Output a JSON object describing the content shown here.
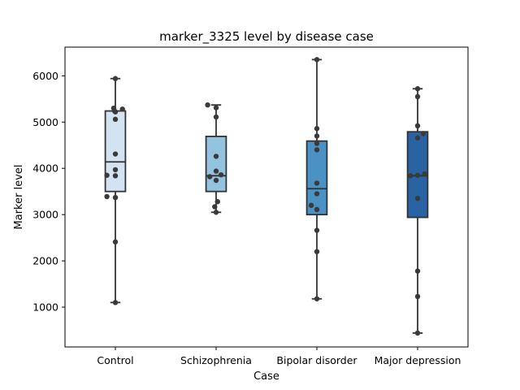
{
  "chart_data": {
    "type": "box",
    "title": "marker_3325 level by disease case",
    "xlabel": "Case",
    "ylabel": "Marker level",
    "ylim": [
      140,
      6620
    ],
    "yticks": [
      1000,
      2000,
      3000,
      4000,
      5000,
      6000
    ],
    "ytick_labels": [
      "1000",
      "2000",
      "3000",
      "4000",
      "5000",
      "6000"
    ],
    "grid": false,
    "legend": "none",
    "categories": [
      "Control",
      "Schizophrenia",
      "Bipolar disorder",
      "Major depression"
    ],
    "colors": [
      "#d3e3f2",
      "#93c3de",
      "#4a91c4",
      "#2a63a3"
    ],
    "point_color": "#3a3a3a",
    "line_color": "#333333",
    "boxes": [
      {
        "category": "Control",
        "whisker_low": 1100,
        "q1": 3500,
        "median": 4140,
        "q3": 5240,
        "whisker_high": 5940
      },
      {
        "category": "Schizophrenia",
        "whisker_low": 3050,
        "q1": 3500,
        "median": 3840,
        "q3": 4690,
        "whisker_high": 5370
      },
      {
        "category": "Bipolar disorder",
        "whisker_low": 1180,
        "q1": 3000,
        "median": 3560,
        "q3": 4590,
        "whisker_high": 6350
      },
      {
        "category": "Major depression",
        "whisker_low": 440,
        "q1": 2940,
        "median": 3840,
        "q3": 4790,
        "whisker_high": 5720
      }
    ],
    "points": [
      [
        {
          "y": 5940,
          "o": 0.0
        },
        {
          "y": 5300,
          "o": -0.12
        },
        {
          "y": 5280,
          "o": 0.5
        },
        {
          "y": 5240,
          "o": -0.05
        },
        {
          "y": 5220,
          "o": 0.0
        },
        {
          "y": 5060,
          "o": 0.0
        },
        {
          "y": 4310,
          "o": 0.0
        },
        {
          "y": 3970,
          "o": 0.0
        },
        {
          "y": 3850,
          "o": -0.6
        },
        {
          "y": 3840,
          "o": 0.0
        },
        {
          "y": 3390,
          "o": -0.6
        },
        {
          "y": 3370,
          "o": 0.0
        },
        {
          "y": 2410,
          "o": 0.0
        },
        {
          "y": 1100,
          "o": 0.0
        }
      ],
      [
        {
          "y": 5370,
          "o": -0.6
        },
        {
          "y": 5310,
          "o": 0.0
        },
        {
          "y": 5110,
          "o": 0.0
        },
        {
          "y": 4260,
          "o": 0.0
        },
        {
          "y": 3940,
          "o": 0.0
        },
        {
          "y": 3860,
          "o": 0.35
        },
        {
          "y": 3820,
          "o": -0.45
        },
        {
          "y": 3740,
          "o": 0.0
        },
        {
          "y": 3280,
          "o": 0.1
        },
        {
          "y": 3170,
          "o": -0.1
        },
        {
          "y": 3050,
          "o": 0.0
        }
      ],
      [
        {
          "y": 6350,
          "o": 0.0
        },
        {
          "y": 4860,
          "o": 0.0
        },
        {
          "y": 4700,
          "o": 0.0
        },
        {
          "y": 4540,
          "o": 0.0
        },
        {
          "y": 4400,
          "o": 0.0
        },
        {
          "y": 3680,
          "o": 0.0
        },
        {
          "y": 3450,
          "o": 0.0
        },
        {
          "y": 3200,
          "o": -0.4
        },
        {
          "y": 3110,
          "o": 0.0
        },
        {
          "y": 2660,
          "o": 0.0
        },
        {
          "y": 2200,
          "o": 0.0
        },
        {
          "y": 1180,
          "o": 0.0
        }
      ],
      [
        {
          "y": 5720,
          "o": 0.0
        },
        {
          "y": 5550,
          "o": 0.0
        },
        {
          "y": 4920,
          "o": 0.0
        },
        {
          "y": 4750,
          "o": 0.4
        },
        {
          "y": 4660,
          "o": 0.0
        },
        {
          "y": 3880,
          "o": 0.5
        },
        {
          "y": 3850,
          "o": 0.0
        },
        {
          "y": 3840,
          "o": -0.5
        },
        {
          "y": 3350,
          "o": 0.0
        },
        {
          "y": 1780,
          "o": 0.0
        },
        {
          "y": 1230,
          "o": 0.0
        },
        {
          "y": 440,
          "o": 0.0
        }
      ]
    ]
  }
}
